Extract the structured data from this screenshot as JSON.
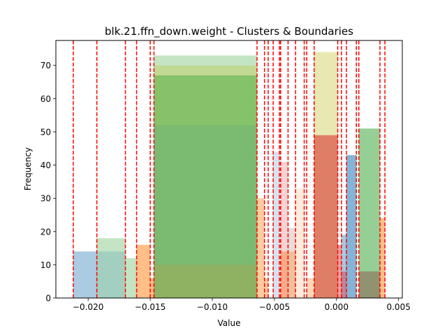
{
  "chart_data": {
    "type": "bar",
    "title": "blk.21.ffn_down.weight - Clusters & Boundaries",
    "xlabel": "Value",
    "ylabel": "Frequency",
    "xlim": [
      -0.0226,
      0.0053
    ],
    "ylim": [
      0,
      77.5
    ],
    "x_ticks": [
      {
        "value": -0.02,
        "label": "−0.020"
      },
      {
        "value": -0.015,
        "label": "−0.015"
      },
      {
        "value": -0.01,
        "label": "−0.010"
      },
      {
        "value": -0.005,
        "label": "−0.005"
      },
      {
        "value": 0.0,
        "label": "0.000"
      },
      {
        "value": 0.005,
        "label": "0.005"
      }
    ],
    "y_ticks": [
      0,
      10,
      20,
      30,
      40,
      50,
      60,
      70
    ],
    "grid": false,
    "boundaries": [
      -0.0212,
      -0.0193,
      -0.017,
      -0.0161,
      -0.015,
      -0.0147,
      -0.0064,
      -0.0058,
      -0.0055,
      -0.0051,
      -0.0046,
      -0.0045,
      -0.0039,
      -0.0033,
      -0.0026,
      -0.0024,
      -0.0018,
      0.0001,
      0.0004,
      0.0008,
      0.0016,
      0.0018,
      0.0035,
      0.0039
    ],
    "boundary_color": "#ff0000",
    "bars": [
      {
        "x0": -0.0212,
        "x1": -0.0193,
        "height": 14,
        "color": "#1f77b4",
        "alpha": 0.38
      },
      {
        "x0": -0.0193,
        "x1": -0.017,
        "height": 18,
        "color": "#2ca02c",
        "alpha": 0.28
      },
      {
        "x0": -0.0193,
        "x1": -0.017,
        "height": 14,
        "color": "#1f77b4",
        "alpha": 0.2
      },
      {
        "x0": -0.017,
        "x1": -0.0161,
        "height": 12,
        "color": "#2ca02c",
        "alpha": 0.28
      },
      {
        "x0": -0.0161,
        "x1": -0.015,
        "height": 16,
        "color": "#ff7f0e",
        "alpha": 0.5
      },
      {
        "x0": -0.015,
        "x1": -0.0147,
        "height": 6,
        "color": "#ff7f0e",
        "alpha": 0.5
      },
      {
        "x0": -0.0147,
        "x1": -0.0064,
        "height": 73,
        "color": "#2ca02c",
        "alpha": 0.28
      },
      {
        "x0": -0.0147,
        "x1": -0.0064,
        "height": 70,
        "color": "#bcbd22",
        "alpha": 0.3
      },
      {
        "x0": -0.0147,
        "x1": -0.0064,
        "height": 67,
        "color": "#2ca02c",
        "alpha": 0.4
      },
      {
        "x0": -0.0147,
        "x1": -0.0064,
        "height": 52,
        "color": "#1f77b4",
        "alpha": 0.1
      },
      {
        "x0": -0.0147,
        "x1": -0.0064,
        "height": 10,
        "color": "#ff7f0e",
        "alpha": 0.15
      },
      {
        "x0": -0.0064,
        "x1": -0.0058,
        "height": 30,
        "color": "#ff7f0e",
        "alpha": 0.4
      },
      {
        "x0": -0.0058,
        "x1": -0.0055,
        "height": 6,
        "color": "#ff7f0e",
        "alpha": 0.4
      },
      {
        "x0": -0.0051,
        "x1": -0.0046,
        "height": 44,
        "color": "#1f77b4",
        "alpha": 0.2
      },
      {
        "x0": -0.0045,
        "x1": -0.0039,
        "height": 14,
        "color": "#ff7f0e",
        "alpha": 0.4
      },
      {
        "x0": -0.0045,
        "x1": -0.0039,
        "height": 41,
        "color": "#d62728",
        "alpha": 0.2
      },
      {
        "x0": -0.0039,
        "x1": -0.0033,
        "height": 21,
        "color": "#8c564b",
        "alpha": 0.2
      },
      {
        "x0": -0.0039,
        "x1": -0.0033,
        "height": 14,
        "color": "#ff7f0e",
        "alpha": 0.3
      },
      {
        "x0": -0.0033,
        "x1": -0.0026,
        "height": 33,
        "color": "#ff7f0e",
        "alpha": 0.15
      },
      {
        "x0": -0.0024,
        "x1": -0.0018,
        "height": 6,
        "color": "#ff7f0e",
        "alpha": 0.3
      },
      {
        "x0": -0.0018,
        "x1": 0.0001,
        "height": 74,
        "color": "#bcbd22",
        "alpha": 0.35
      },
      {
        "x0": -0.0018,
        "x1": 0.0001,
        "height": 49,
        "color": "#d62728",
        "alpha": 0.55
      },
      {
        "x0": 0.0001,
        "x1": 0.0004,
        "height": 16,
        "color": "#d62728",
        "alpha": 0.45
      },
      {
        "x0": 0.0004,
        "x1": 0.0008,
        "height": 19,
        "color": "#1f77b4",
        "alpha": 0.4
      },
      {
        "x0": 0.0004,
        "x1": 0.0008,
        "height": 8,
        "color": "#d62728",
        "alpha": 0.4
      },
      {
        "x0": 0.0008,
        "x1": 0.0016,
        "height": 43,
        "color": "#1f77b4",
        "alpha": 0.55
      },
      {
        "x0": 0.0018,
        "x1": 0.0035,
        "height": 51,
        "color": "#2ca02c",
        "alpha": 0.5
      },
      {
        "x0": 0.0018,
        "x1": 0.0035,
        "height": 8,
        "color": "#8c564b",
        "alpha": 0.5
      },
      {
        "x0": 0.0035,
        "x1": 0.0039,
        "height": 24,
        "color": "#ff7f0e",
        "alpha": 0.5
      }
    ]
  }
}
